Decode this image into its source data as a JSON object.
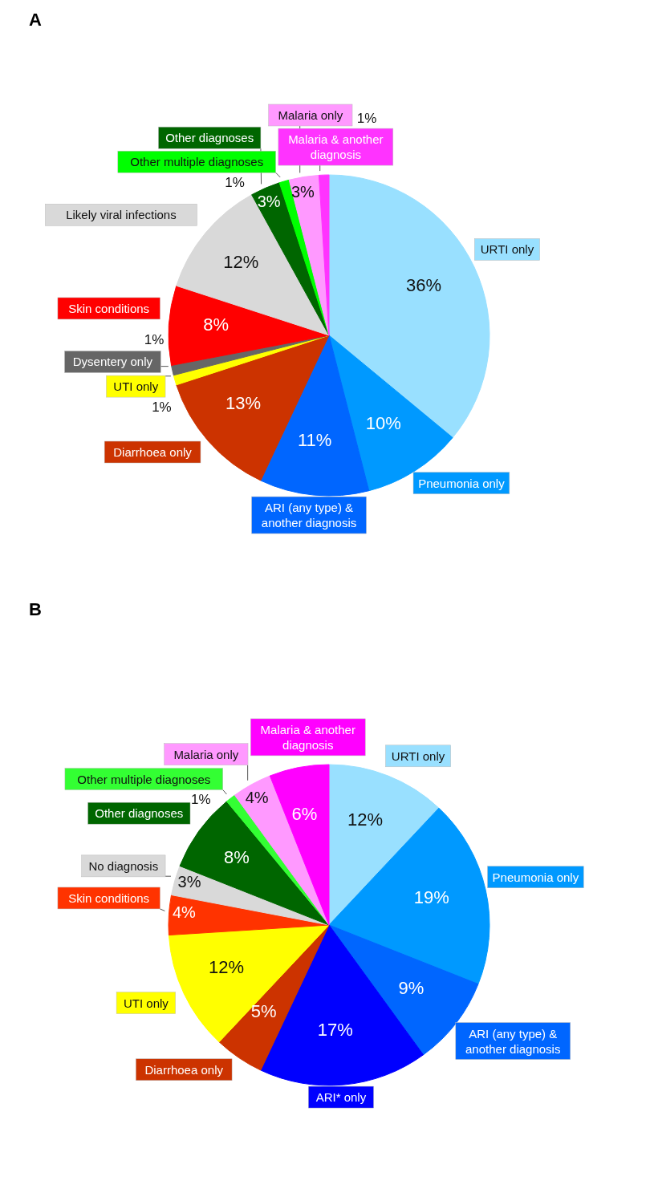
{
  "chart_data": [
    {
      "type": "pie",
      "title": "A",
      "categories": [
        "URTI only",
        "Pneumonia only",
        "ARI (any type) & another diagnosis",
        "Diarrhoea only",
        "UTI only",
        "Dysentery only",
        "Skin conditions",
        "Likely viral infections",
        "Other diagnoses",
        "Other multiple diagnoses",
        "Malaria only",
        "Malaria & another diagnosis"
      ],
      "values": [
        36,
        10,
        11,
        13,
        1,
        1,
        8,
        12,
        3,
        1,
        3,
        1
      ],
      "value_labels": [
        "36%",
        "10%",
        "11%",
        "13%",
        "1%",
        "1%",
        "8%",
        "12%",
        "3%",
        "1%",
        "3%",
        "1%"
      ],
      "colors": [
        "#99e0ff",
        "#0099ff",
        "#0066ff",
        "#cc3300",
        "#ffff00",
        "#666666",
        "#ff0000",
        "#d9d9d9",
        "#006600",
        "#00ff00",
        "#ff99ff",
        "#ff33ff"
      ]
    },
    {
      "type": "pie",
      "title": "B",
      "categories": [
        "URTI only",
        "Pneumonia only",
        "ARI (any type) & another diagnosis",
        "ARI* only",
        "Diarrhoea only",
        "UTI only",
        "Skin conditions",
        "No diagnosis",
        "Other diagnoses",
        "Other multiple diagnoses",
        "Malaria only",
        "Malaria & another diagnosis"
      ],
      "values": [
        12,
        19,
        9,
        17,
        5,
        12,
        4,
        3,
        8,
        1,
        4,
        6
      ],
      "value_labels": [
        "12%",
        "19%",
        "9%",
        "17%",
        "5%",
        "12%",
        "4%",
        "3%",
        "8%",
        "1%",
        "4%",
        "6%"
      ],
      "colors": [
        "#99e0ff",
        "#0099ff",
        "#0066ff",
        "#0000ff",
        "#cc3300",
        "#ffff00",
        "#ff3300",
        "#d9d9d9",
        "#006600",
        "#33ff33",
        "#ff99ff",
        "#ff00ff"
      ]
    }
  ]
}
